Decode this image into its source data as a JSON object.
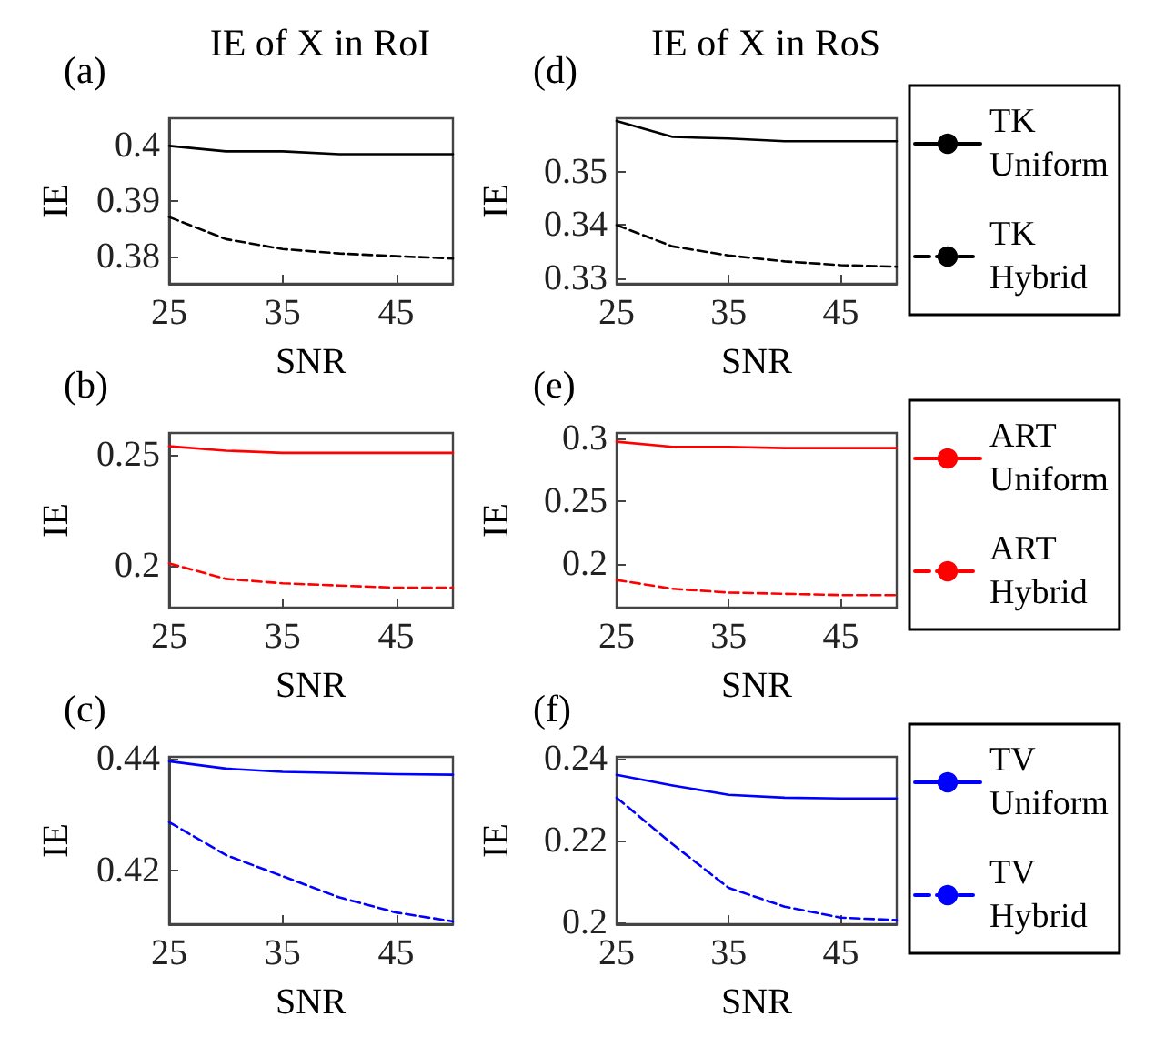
{
  "chart_data": [
    {
      "type": "line",
      "title": "IE of X in RoI",
      "annotations": [
        "(a)"
      ],
      "xlabel": "SNR",
      "ylabel": "IE",
      "x": [
        25,
        30,
        35,
        40,
        45,
        50
      ],
      "xlim": [
        25,
        50
      ],
      "xticks": [
        25,
        35,
        45
      ],
      "ylim": [
        0.375,
        0.405
      ],
      "yticks": [
        0.38,
        0.39,
        0.4
      ],
      "legend": false,
      "series": [
        {
          "color": "#000000",
          "line_style": "solid",
          "values": [
            0.4,
            0.399,
            0.399,
            0.3985,
            0.3985,
            0.3985
          ]
        },
        {
          "color": "#000000",
          "line_style": "dashed",
          "values": [
            0.3871,
            0.3831,
            0.3813,
            0.3805,
            0.38,
            0.3796
          ]
        }
      ]
    },
    {
      "type": "line",
      "title": "IE of X in RoS",
      "annotations": [
        "(d)"
      ],
      "xlabel": "SNR",
      "ylabel": "IE",
      "x": [
        25,
        30,
        35,
        40,
        45,
        50
      ],
      "xlim": [
        25,
        50
      ],
      "xticks": [
        25,
        35,
        45
      ],
      "ylim": [
        0.329,
        0.36
      ],
      "yticks": [
        0.33,
        0.34,
        0.35
      ],
      "legend": "right",
      "series": [
        {
          "name": "TK Uniform",
          "color": "#000000",
          "line_style": "solid",
          "values": [
            0.3595,
            0.3565,
            0.3562,
            0.3557,
            0.3557,
            0.3557
          ]
        },
        {
          "name": "TK Hybrid",
          "color": "#000000",
          "line_style": "dashed",
          "values": [
            0.34,
            0.336,
            0.3343,
            0.3332,
            0.3325,
            0.3322
          ]
        }
      ]
    },
    {
      "type": "line",
      "annotations": [
        "(b)"
      ],
      "xlabel": "SNR",
      "ylabel": "IE",
      "x": [
        25,
        30,
        35,
        40,
        45,
        50
      ],
      "xlim": [
        25,
        50
      ],
      "xticks": [
        25,
        35,
        45
      ],
      "ylim": [
        0.181,
        0.26
      ],
      "yticks": [
        0.2,
        0.25
      ],
      "legend": false,
      "series": [
        {
          "color": "#ff0000",
          "line_style": "solid",
          "values": [
            0.254,
            0.252,
            0.251,
            0.251,
            0.251,
            0.251
          ]
        },
        {
          "color": "#ff0000",
          "line_style": "dashed",
          "values": [
            0.201,
            0.194,
            0.192,
            0.191,
            0.19,
            0.19
          ]
        }
      ]
    },
    {
      "type": "line",
      "annotations": [
        "(e)"
      ],
      "xlabel": "SNR",
      "ylabel": "IE",
      "x": [
        25,
        30,
        35,
        40,
        45,
        50
      ],
      "xlim": [
        25,
        50
      ],
      "xticks": [
        25,
        35,
        45
      ],
      "ylim": [
        0.165,
        0.304
      ],
      "yticks": [
        0.2,
        0.25,
        0.3
      ],
      "legend": "right",
      "series": [
        {
          "name": "ART Uniform",
          "color": "#ff0000",
          "line_style": "solid",
          "values": [
            0.297,
            0.293,
            0.293,
            0.292,
            0.292,
            0.292
          ]
        },
        {
          "name": "ART Hybrid",
          "color": "#ff0000",
          "line_style": "dashed",
          "values": [
            0.187,
            0.18,
            0.177,
            0.176,
            0.175,
            0.175
          ]
        }
      ]
    },
    {
      "type": "line",
      "annotations": [
        "(c)"
      ],
      "xlabel": "SNR",
      "ylabel": "IE",
      "x": [
        25,
        30,
        35,
        40,
        45,
        50
      ],
      "xlim": [
        25,
        50
      ],
      "xticks": [
        25,
        35,
        45
      ],
      "ylim": [
        0.4103,
        0.4403
      ],
      "yticks": [
        0.42,
        0.44
      ],
      "legend": false,
      "series": [
        {
          "color": "#0000ff",
          "line_style": "solid",
          "values": [
            0.4395,
            0.4382,
            0.4376,
            0.4374,
            0.4372,
            0.4371
          ]
        },
        {
          "color": "#0000ff",
          "line_style": "dashed",
          "values": [
            0.4286,
            0.4227,
            0.4189,
            0.4151,
            0.4124,
            0.4108
          ]
        }
      ]
    },
    {
      "type": "line",
      "annotations": [
        "(f)"
      ],
      "xlabel": "SNR",
      "ylabel": "IE",
      "x": [
        25,
        30,
        35,
        40,
        45,
        50
      ],
      "xlim": [
        25,
        50
      ],
      "xticks": [
        25,
        35,
        45
      ],
      "ylim": [
        0.1995,
        0.2405
      ],
      "yticks": [
        0.2,
        0.22,
        0.24
      ],
      "legend": "right",
      "series": [
        {
          "name": "TV Uniform",
          "color": "#0000ff",
          "line_style": "solid",
          "values": [
            0.2361,
            0.2335,
            0.2312,
            0.2305,
            0.2303,
            0.2303
          ]
        },
        {
          "name": "TV Hybrid",
          "color": "#0000ff",
          "line_style": "dashed",
          "values": [
            0.2305,
            0.2191,
            0.2084,
            0.2038,
            0.2011,
            0.2005
          ]
        }
      ]
    }
  ]
}
